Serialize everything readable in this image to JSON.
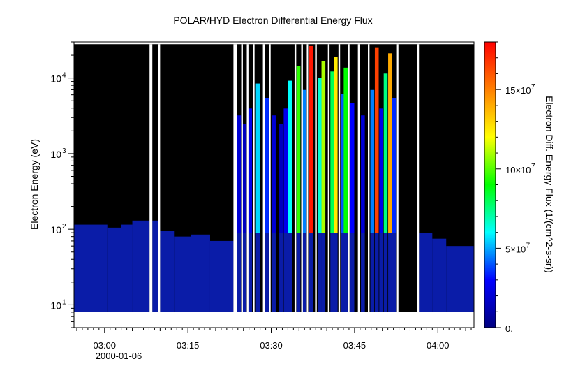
{
  "chart_data": {
    "type": "heatmap",
    "title": "POLAR/HYD  Electron Differential Energy Flux",
    "xlabel": "",
    "ylabel": "Electron Energy (eV)",
    "x_tick_labels": [
      "03:00",
      "03:15",
      "03:30",
      "03:45",
      "04:00"
    ],
    "x_tick_minutes": [
      0,
      15,
      30,
      45,
      60
    ],
    "x_date_label": "2000-01-06",
    "xlim_minutes": [
      -5.5,
      66.5
    ],
    "y_scale": "log",
    "ylim": [
      5,
      30000
    ],
    "y_tick_values": [
      10,
      100,
      1000,
      10000
    ],
    "y_tick_labels": [
      {
        "base": "10",
        "exp": "1"
      },
      {
        "base": "10",
        "exp": "2"
      },
      {
        "base": "10",
        "exp": "3"
      },
      {
        "base": "10",
        "exp": "4"
      }
    ],
    "energy_range": [
      8,
      28000
    ],
    "colorbar": {
      "label": "Electron Diff. Energy Flux (1/(cm^2-s-sr))",
      "range": [
        0,
        180000000
      ],
      "tick_values": [
        0,
        50000000,
        100000000,
        150000000
      ],
      "tick_labels": [
        {
          "base": "0.",
          "exp": ""
        },
        {
          "base": "5×10",
          "exp": "7"
        },
        {
          "base": "10×10",
          "exp": "7"
        },
        {
          "base": "15×10",
          "exp": "7"
        }
      ],
      "colormap": [
        "#000080",
        "#0000ff",
        "#00ffff",
        "#00ff00",
        "#ffff00",
        "#ff8000",
        "#ff0000"
      ]
    },
    "background_color": "#000000",
    "data_gaps_minutes": [
      [
        8.1,
        8.6
      ],
      [
        9.6,
        10.0
      ],
      [
        23.2,
        23.8
      ],
      [
        24.6,
        24.9
      ],
      [
        25.6,
        25.9
      ],
      [
        26.7,
        27.0
      ],
      [
        28.5,
        28.9
      ],
      [
        29.6,
        29.9
      ],
      [
        34.2,
        34.5
      ],
      [
        35.4,
        35.7
      ],
      [
        36.4,
        36.6
      ],
      [
        37.9,
        38.2
      ],
      [
        40.2,
        40.5
      ],
      [
        42.1,
        42.4
      ],
      [
        43.8,
        44.1
      ],
      [
        45.6,
        45.9
      ],
      [
        47.4,
        47.7
      ],
      [
        52.5,
        52.9
      ],
      [
        56.2,
        56.6
      ]
    ],
    "flux_profile": [
      {
        "from": -5.5,
        "to": 0.5,
        "upper_energy": 115
      },
      {
        "from": 0.5,
        "to": 3.0,
        "upper_energy": 105
      },
      {
        "from": 3.0,
        "to": 5.0,
        "upper_energy": 115
      },
      {
        "from": 5.0,
        "to": 8.1,
        "upper_energy": 130
      },
      {
        "from": 8.6,
        "to": 9.6,
        "upper_energy": 130
      },
      {
        "from": 10.0,
        "to": 12.5,
        "upper_energy": 95
      },
      {
        "from": 12.5,
        "to": 15.5,
        "upper_energy": 80
      },
      {
        "from": 15.5,
        "to": 19.0,
        "upper_energy": 85
      },
      {
        "from": 19.0,
        "to": 23.2,
        "upper_energy": 70
      },
      {
        "from": 56.6,
        "to": 59.0,
        "upper_energy": 90
      },
      {
        "from": 59.0,
        "to": 61.5,
        "upper_energy": 75
      },
      {
        "from": 61.5,
        "to": 66.5,
        "upper_energy": 60
      }
    ],
    "active_columns": [
      {
        "t": 24.2,
        "flux": 20000000
      },
      {
        "t": 25.2,
        "flux": 15000000
      },
      {
        "t": 26.2,
        "flux": 25000000
      },
      {
        "t": 27.6,
        "flux": 55000000
      },
      {
        "t": 29.2,
        "flux": 35000000
      },
      {
        "t": 30.5,
        "flux": 20000000
      },
      {
        "t": 31.8,
        "flux": 15000000
      },
      {
        "t": 32.6,
        "flux": 25000000
      },
      {
        "t": 33.4,
        "flux": 60000000
      },
      {
        "t": 34.9,
        "flux": 95000000
      },
      {
        "t": 36.0,
        "flux": 45000000
      },
      {
        "t": 37.2,
        "flux": 175000000
      },
      {
        "t": 38.7,
        "flux": 65000000
      },
      {
        "t": 39.4,
        "flux": 110000000
      },
      {
        "t": 41.0,
        "flux": 80000000
      },
      {
        "t": 41.6,
        "flux": 125000000
      },
      {
        "t": 42.9,
        "flux": 40000000
      },
      {
        "t": 43.4,
        "flux": 90000000
      },
      {
        "t": 44.6,
        "flux": 30000000
      },
      {
        "t": 46.5,
        "flux": 20000000
      },
      {
        "t": 48.2,
        "flux": 45000000
      },
      {
        "t": 49.0,
        "flux": 165000000
      },
      {
        "t": 49.8,
        "flux": 25000000
      },
      {
        "t": 50.6,
        "flux": 75000000
      },
      {
        "t": 51.4,
        "flux": 140000000
      },
      {
        "t": 52.1,
        "flux": 35000000
      }
    ]
  }
}
